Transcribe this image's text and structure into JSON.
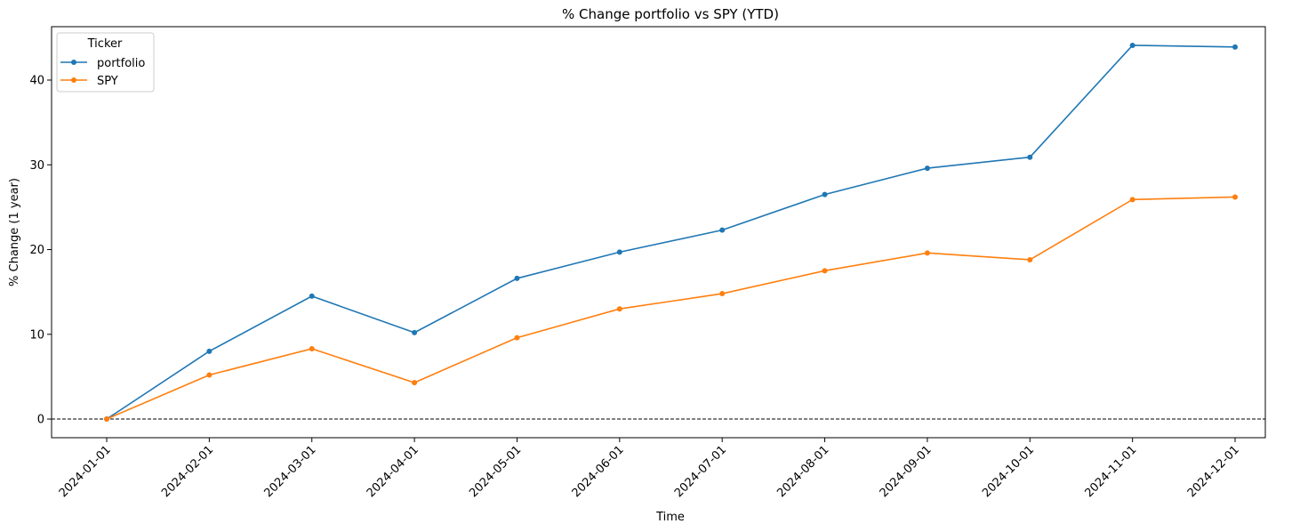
{
  "chart_data": {
    "type": "line",
    "title": "% Change portfolio vs SPY (YTD)",
    "xlabel": "Time",
    "ylabel": "% Change (1 year)",
    "x": [
      "2024-01-01",
      "2024-02-01",
      "2024-03-01",
      "2024-04-01",
      "2024-05-01",
      "2024-06-01",
      "2024-07-01",
      "2024-08-01",
      "2024-09-01",
      "2024-10-01",
      "2024-11-01",
      "2024-12-01"
    ],
    "series": [
      {
        "name": "portfolio",
        "color": "#1f77b4",
        "values": [
          0,
          8.0,
          14.5,
          10.2,
          16.6,
          19.7,
          22.3,
          26.5,
          29.6,
          30.9,
          44.1,
          43.9
        ]
      },
      {
        "name": "SPY",
        "color": "#ff7f0e",
        "values": [
          0,
          5.2,
          8.3,
          4.3,
          9.6,
          13.0,
          14.8,
          17.5,
          19.6,
          18.8,
          25.9,
          26.2
        ]
      }
    ],
    "ylim": [
      -2.2,
      46.3
    ],
    "yticks": [
      0,
      10,
      20,
      30,
      40
    ],
    "reference_line": {
      "y": 0,
      "style": "dashed",
      "color": "#000000"
    },
    "legend": {
      "title": "Ticker",
      "placement": "upper-left"
    },
    "grid": false
  }
}
